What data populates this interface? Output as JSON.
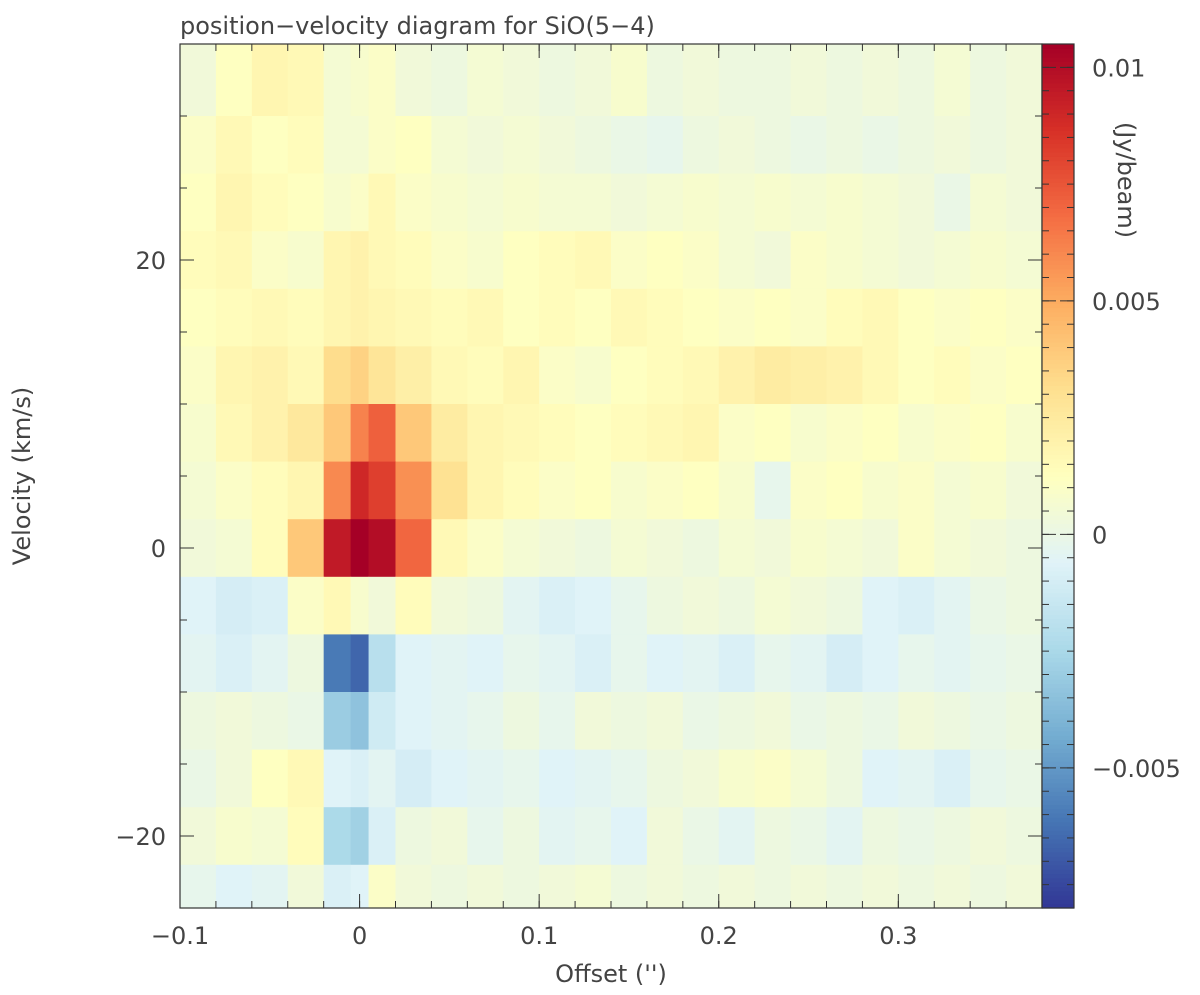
{
  "chart_data": {
    "type": "heatmap",
    "title": "position−velocity diagram for SiO(5−4)",
    "xlabel": "Offset ('')",
    "ylabel": "Velocity (km/s)",
    "colorbar_label": "(Jy/beam)",
    "xlim": [
      -0.1,
      0.38
    ],
    "ylim": [
      -25,
      35
    ],
    "clim": [
      -0.008,
      0.0105
    ],
    "x_ticks": [
      -0.1,
      0,
      0.1,
      0.2,
      0.3
    ],
    "x_tick_labels": [
      "−0.1",
      "0",
      "0.1",
      "0.2",
      "0.3"
    ],
    "y_ticks": [
      -20,
      0,
      20
    ],
    "y_tick_labels": [
      "−20",
      "0",
      "20"
    ],
    "c_ticks": [
      -0.005,
      0,
      0.005,
      0.01
    ],
    "c_tick_labels": [
      "−0.005",
      "0",
      "0.005",
      "0.01"
    ],
    "colormap": "RdYlBu_r",
    "colormap_stops": [
      "#313695",
      "#4575b4",
      "#74add1",
      "#abd9e9",
      "#e0f3f8",
      "#ffffbf",
      "#fee090",
      "#fdae61",
      "#f46d43",
      "#d73027",
      "#a50026"
    ],
    "velocity_channels": [
      32,
      28,
      24,
      20,
      16,
      12,
      8,
      4,
      0,
      -4,
      -8,
      -12,
      -16,
      -20,
      -24
    ],
    "offset_bins": [
      -0.09,
      -0.07,
      -0.05,
      -0.03,
      -0.01,
      0.0,
      0.01,
      0.03,
      0.05,
      0.07,
      0.09,
      0.11,
      0.13,
      0.15,
      0.17,
      0.19,
      0.21,
      0.23,
      0.25,
      0.27,
      0.29,
      0.31,
      0.33,
      0.35,
      0.37
    ],
    "values": [
      [
        0.0004,
        0.0012,
        0.0018,
        0.0016,
        0.0006,
        0.0008,
        0.001,
        0.0004,
        0.0002,
        0.0006,
        0.0004,
        0.0002,
        0.0004,
        0.0008,
        0.0002,
        0.0004,
        0.0002,
        0.0002,
        0.0004,
        0.0002,
        0.0004,
        0.0002,
        0.0006,
        0.0002,
        0.0004
      ],
      [
        0.001,
        0.0016,
        0.0012,
        0.0014,
        0.0006,
        0.0006,
        0.001,
        0.0012,
        0.0006,
        0.0004,
        0.0006,
        0.0004,
        0.0002,
        0.0,
        -0.0002,
        0.0002,
        0.0004,
        0.0002,
        0.0,
        0.0002,
        0.0,
        0.0002,
        0.0004,
        0.0002,
        0.0004
      ],
      [
        0.0012,
        0.0018,
        0.0014,
        0.0012,
        0.0008,
        0.001,
        0.0016,
        0.001,
        0.0008,
        0.0006,
        0.0008,
        0.0006,
        0.0006,
        0.0004,
        0.0006,
        0.0008,
        0.0006,
        0.0008,
        0.0006,
        0.0008,
        0.0006,
        0.0004,
        0.0,
        0.0006,
        0.0004
      ],
      [
        0.0014,
        0.0016,
        0.001,
        0.0008,
        0.0018,
        0.002,
        0.0016,
        0.0014,
        0.001,
        0.0008,
        0.0012,
        0.0014,
        0.0016,
        0.001,
        0.0012,
        0.001,
        0.0006,
        0.0004,
        0.001,
        0.0008,
        0.0006,
        0.0004,
        0.0006,
        0.0008,
        0.0006
      ],
      [
        0.0012,
        0.0014,
        0.0016,
        0.0014,
        0.0018,
        0.002,
        0.0018,
        0.0016,
        0.0014,
        0.0016,
        0.0012,
        0.0014,
        0.0012,
        0.0016,
        0.0014,
        0.0012,
        0.001,
        0.0012,
        0.001,
        0.0014,
        0.0016,
        0.0012,
        0.001,
        0.0012,
        0.001
      ],
      [
        0.001,
        0.0018,
        0.002,
        0.0016,
        0.0032,
        0.0036,
        0.0028,
        0.0022,
        0.0016,
        0.0014,
        0.0018,
        0.001,
        0.0008,
        0.0012,
        0.0014,
        0.0016,
        0.002,
        0.0024,
        0.0022,
        0.002,
        0.0016,
        0.0012,
        0.0014,
        0.001,
        0.0012
      ],
      [
        0.0008,
        0.0016,
        0.002,
        0.0026,
        0.004,
        0.0062,
        0.0072,
        0.004,
        0.0024,
        0.0018,
        0.0016,
        0.0014,
        0.0012,
        0.0014,
        0.0016,
        0.0018,
        0.001,
        0.0012,
        0.0008,
        0.001,
        0.0012,
        0.0008,
        0.001,
        0.0012,
        0.0008
      ],
      [
        0.0006,
        0.001,
        0.0014,
        0.0018,
        0.006,
        0.009,
        0.0082,
        0.0058,
        0.003,
        0.0018,
        0.0014,
        0.001,
        0.0012,
        0.0008,
        0.001,
        0.0012,
        0.0008,
        -0.0002,
        0.001,
        0.0012,
        0.0008,
        0.001,
        0.0006,
        0.0008,
        0.0004
      ],
      [
        0.0004,
        0.0006,
        0.0014,
        0.004,
        0.0095,
        0.0105,
        0.01,
        0.007,
        0.0016,
        0.001,
        0.0006,
        0.0004,
        0.0002,
        0.0006,
        0.0004,
        0.0002,
        0.0006,
        0.0004,
        0.0008,
        0.0006,
        0.0004,
        0.001,
        0.0006,
        0.0004,
        0.0002
      ],
      [
        -0.0006,
        -0.001,
        -0.0008,
        0.001,
        0.0016,
        0.0008,
        0.0004,
        0.0014,
        0.0004,
        0.0002,
        -0.0004,
        -0.0008,
        -0.0006,
        -0.0002,
        0.0002,
        0.0004,
        0.0002,
        0.0006,
        0.0004,
        0.0002,
        -0.0006,
        -0.0008,
        -0.0004,
        0.0,
        0.0002
      ],
      [
        -0.0004,
        -0.0008,
        -0.0004,
        0.0002,
        -0.006,
        -0.0066,
        -0.002,
        -0.0006,
        -0.0004,
        -0.0006,
        -0.0002,
        -0.0004,
        -0.0008,
        -0.0002,
        -0.0006,
        -0.0004,
        -0.0008,
        -0.0002,
        -0.0004,
        -0.001,
        -0.0006,
        -0.0002,
        -0.0004,
        -0.0002,
        0.0
      ],
      [
        0.0002,
        0.0004,
        0.0002,
        0.0,
        -0.003,
        -0.0034,
        -0.0012,
        -0.0006,
        -0.0004,
        -0.0002,
        0.0002,
        -0.0002,
        0.0004,
        0.0002,
        0.0004,
        0.0,
        0.0002,
        0.0004,
        0.0,
        0.0002,
        0.0,
        0.0004,
        0.0002,
        0.0,
        0.0002
      ],
      [
        0.0,
        0.0004,
        0.0012,
        0.0016,
        -0.0006,
        -0.0008,
        -0.0004,
        -0.001,
        -0.0006,
        -0.0004,
        -0.0002,
        -0.0006,
        -0.0004,
        -0.0002,
        0.0002,
        0.0004,
        0.0008,
        0.001,
        0.0006,
        0.0002,
        -0.0006,
        -0.0004,
        -0.0008,
        -0.0002,
        0.0
      ],
      [
        0.0004,
        0.0008,
        0.0006,
        0.0014,
        -0.0024,
        -0.0028,
        -0.0008,
        0.0002,
        0.0004,
        -0.0002,
        0.0002,
        -0.0004,
        -0.0002,
        -0.0006,
        0.0004,
        0.0,
        -0.0004,
        0.0002,
        0.0,
        -0.0004,
        0.0002,
        0.0,
        0.0002,
        0.0004,
        0.0002
      ],
      [
        -0.0002,
        -0.0006,
        -0.0004,
        0.0004,
        -0.0008,
        -0.0006,
        0.001,
        0.0004,
        0.0002,
        0.0004,
        0.0002,
        0.0004,
        0.0006,
        0.0002,
        0.0004,
        0.0002,
        0.0004,
        0.0002,
        0.0004,
        0.0002,
        0.0004,
        0.0002,
        0.0004,
        0.0002,
        0.0004
      ]
    ],
    "grid": false,
    "colorbar_position": "right"
  }
}
